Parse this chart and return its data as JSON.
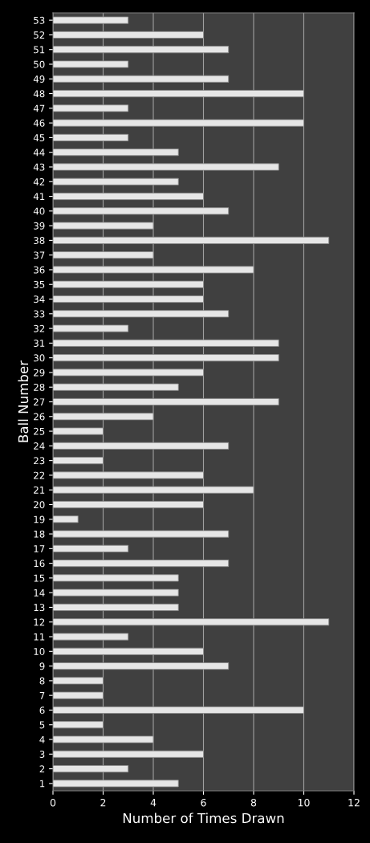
{
  "chart_data": {
    "type": "bar",
    "orientation": "horizontal",
    "xlabel": "Number of Times Drawn",
    "ylabel": "Ball Number",
    "categories": [
      "53",
      "52",
      "51",
      "50",
      "49",
      "48",
      "47",
      "46",
      "45",
      "44",
      "43",
      "42",
      "41",
      "40",
      "39",
      "38",
      "37",
      "36",
      "35",
      "34",
      "33",
      "32",
      "31",
      "30",
      "29",
      "28",
      "27",
      "26",
      "25",
      "24",
      "23",
      "22",
      "21",
      "20",
      "19",
      "18",
      "17",
      "16",
      "15",
      "14",
      "13",
      "12",
      "11",
      "10",
      "9",
      "8",
      "7",
      "6",
      "5",
      "4",
      "3",
      "2",
      "1"
    ],
    "values": [
      3,
      6,
      7,
      3,
      7,
      10,
      3,
      10,
      3,
      5,
      9,
      5,
      6,
      7,
      4,
      11,
      4,
      8,
      6,
      6,
      7,
      3,
      9,
      9,
      6,
      5,
      9,
      4,
      2,
      7,
      2,
      6,
      8,
      6,
      1,
      7,
      3,
      7,
      5,
      5,
      5,
      11,
      3,
      6,
      7,
      2,
      2,
      10,
      2,
      4,
      6,
      3,
      5
    ],
    "color": "#e6e6e6",
    "xlim": [
      0,
      12
    ],
    "xticks": [
      0,
      2,
      4,
      6,
      8,
      10,
      12
    ],
    "grid": "x",
    "legend": false
  }
}
